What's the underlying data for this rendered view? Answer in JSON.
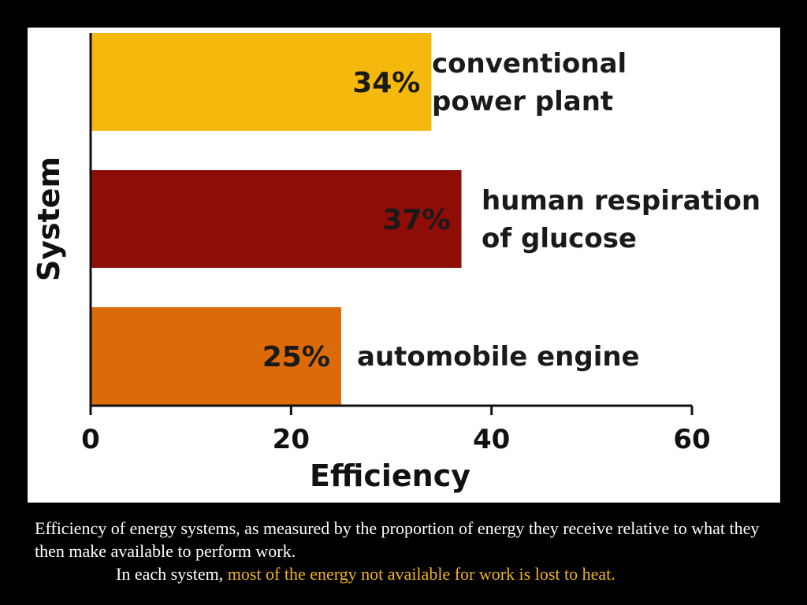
{
  "chart_data": {
    "type": "bar",
    "orientation": "horizontal",
    "categories": [
      "conventional power plant",
      "human respiration of glucose",
      "automobile engine"
    ],
    "label_lines": [
      [
        "conventional",
        "power plant"
      ],
      [
        "human respiration",
        "of glucose"
      ],
      [
        "automobile engine"
      ]
    ],
    "values": [
      34,
      37,
      25
    ],
    "value_labels": [
      "34%",
      "37%",
      "25%"
    ],
    "colors": [
      "#f5b80c",
      "#8f0d07",
      "#db6a09"
    ],
    "xlabel": "Efficiency",
    "ylabel": "System",
    "xlim": [
      0,
      60
    ],
    "xticks": [
      0,
      20,
      40,
      60
    ],
    "grid": false,
    "legend": "none"
  },
  "caption": {
    "line1": "Efficiency of energy systems, as measured by the proportion of energy they receive relative to what they then make available to perform work.",
    "line2_lead": "In each system, ",
    "line2_highlight": "most of the energy not available for work is lost to heat."
  }
}
